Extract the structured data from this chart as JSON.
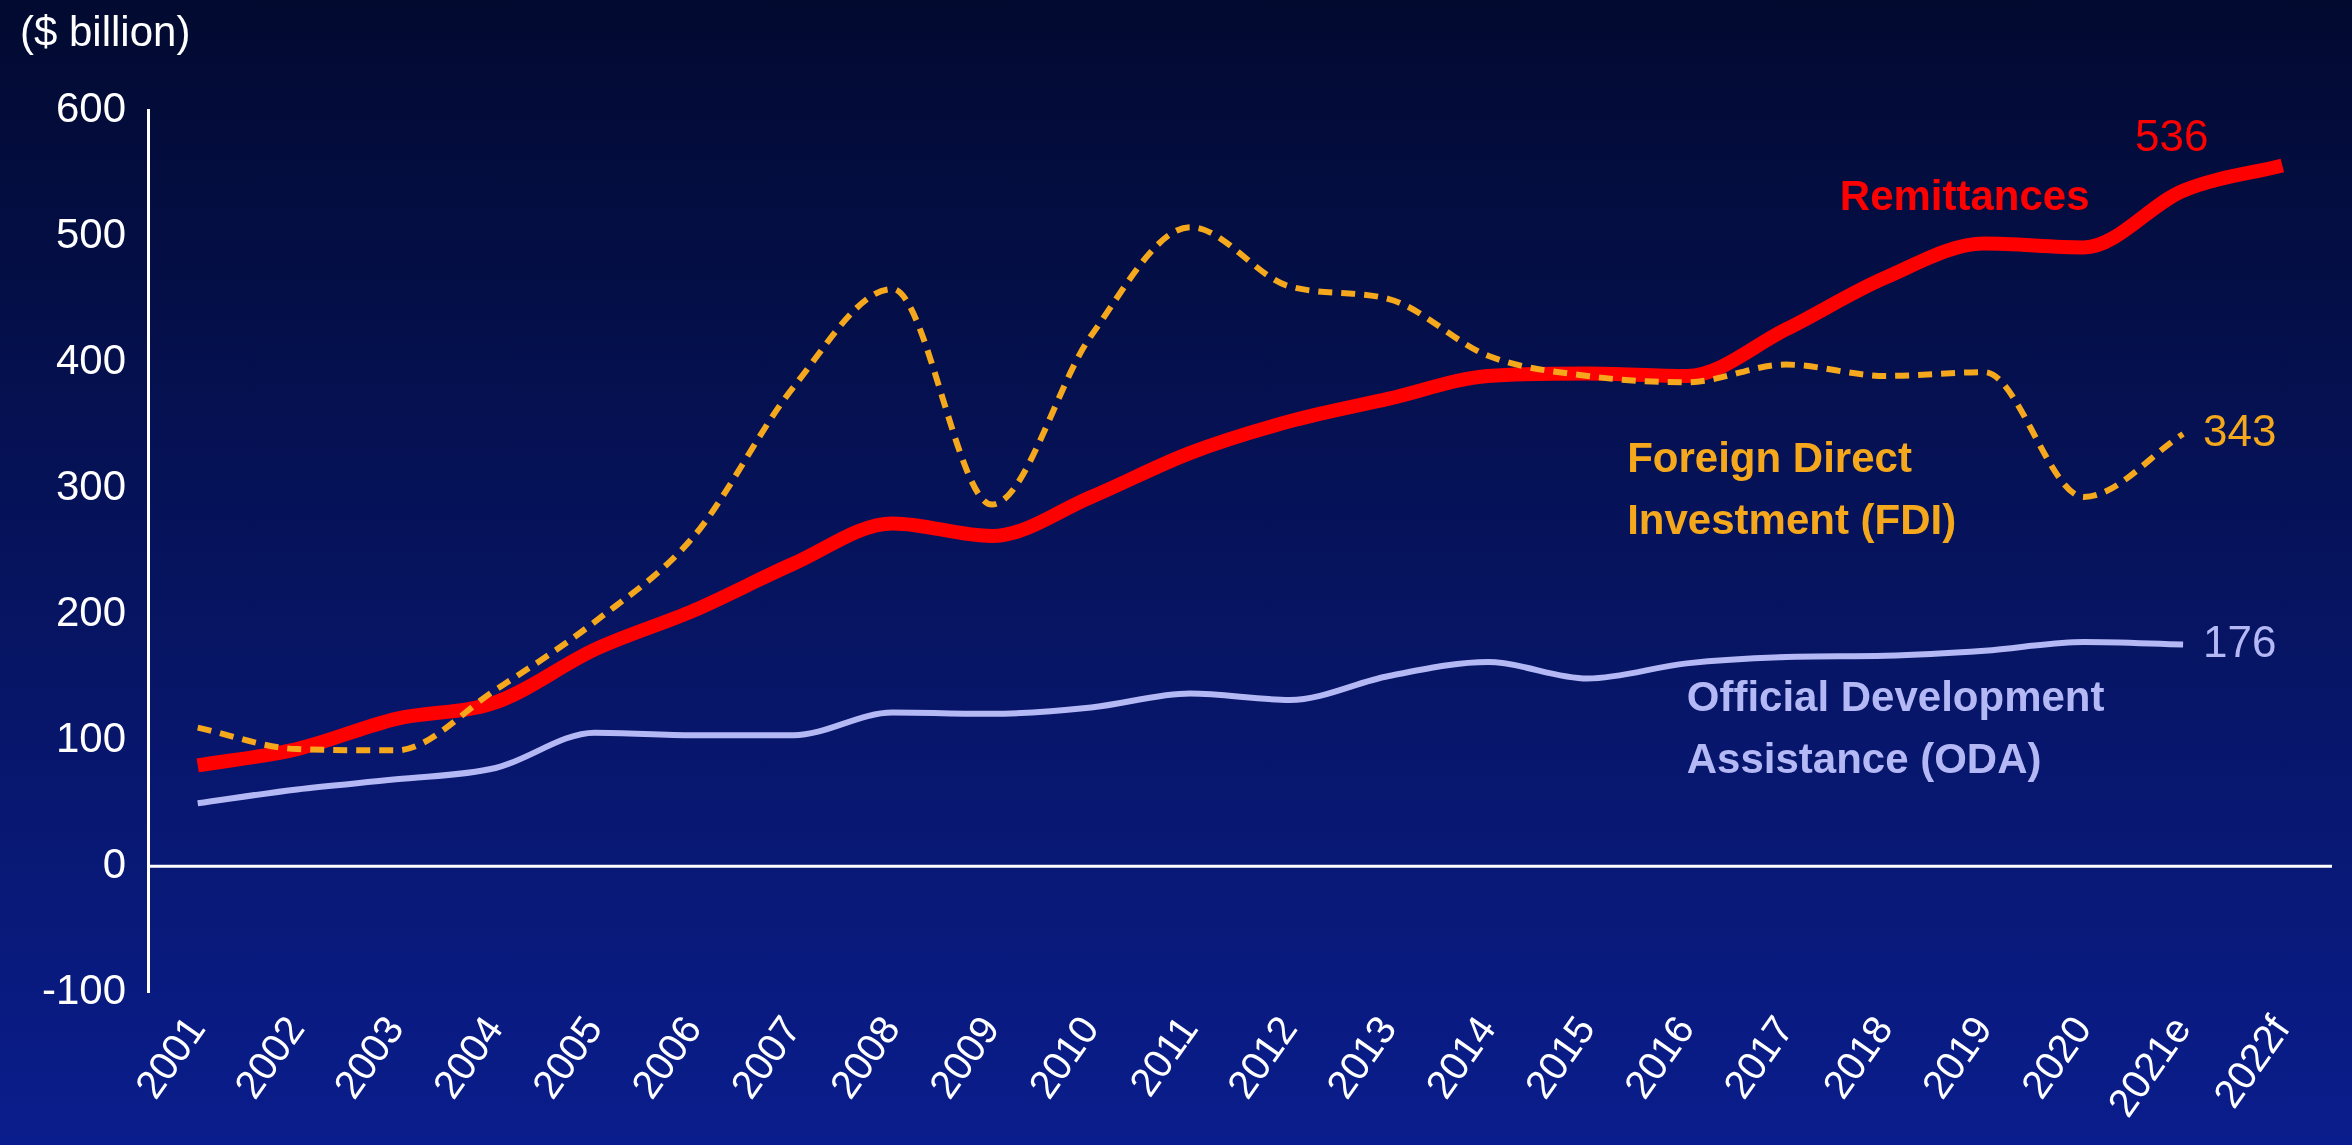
{
  "chart_data": {
    "type": "line",
    "ylabel": "($ billion)",
    "categories": [
      "2001",
      "2002",
      "2003",
      "2004",
      "2005",
      "2006",
      "2007",
      "2008",
      "2009",
      "2010",
      "2011",
      "2012",
      "2013",
      "2014",
      "2015",
      "2016",
      "2017",
      "2018",
      "2019",
      "2020",
      "2021e",
      "2022f"
    ],
    "series": [
      {
        "name": "Remittances",
        "color": "#ff0000",
        "line_style": "solid",
        "values": [
          80,
          93,
          117,
          130,
          172,
          203,
          240,
          272,
          262,
          293,
          328,
          353,
          371,
          389,
          391,
          389,
          426,
          467,
          494,
          491,
          536,
          556
        ],
        "value_labels": [
          null,
          null,
          null,
          null,
          null,
          null,
          null,
          null,
          null,
          null,
          null,
          null,
          null,
          null,
          null,
          null,
          null,
          null,
          null,
          null,
          "536",
          null
        ]
      },
      {
        "name": "Foreign Direct Investment (FDI)",
        "color": "#f5a81c",
        "line_style": "dashed",
        "values": [
          110,
          93,
          92,
          140,
          194,
          262,
          380,
          458,
          287,
          421,
          507,
          460,
          450,
          405,
          389,
          384,
          398,
          389,
          392,
          293,
          343,
          null
        ],
        "value_labels": [
          null,
          null,
          null,
          null,
          null,
          null,
          null,
          null,
          null,
          null,
          null,
          null,
          null,
          null,
          null,
          null,
          null,
          null,
          null,
          null,
          "343",
          null
        ]
      },
      {
        "name": "Official Development Assistance (ODA)",
        "color": "#b4b8f5",
        "line_style": "solid",
        "values": [
          50,
          61,
          69,
          78,
          106,
          104,
          104,
          122,
          121,
          126,
          137,
          132,
          151,
          162,
          149,
          161,
          166,
          167,
          171,
          178,
          176,
          null
        ],
        "value_labels": [
          null,
          null,
          null,
          null,
          null,
          null,
          null,
          null,
          null,
          null,
          null,
          null,
          null,
          null,
          null,
          null,
          null,
          null,
          null,
          null,
          "176",
          null
        ]
      }
    ],
    "ylim": [
      -100,
      600
    ],
    "yticks": [
      -100,
      0,
      100,
      200,
      300,
      400,
      500,
      600
    ],
    "ref_lines": [
      {
        "axis": "y",
        "value": 0,
        "color": "#ffffff"
      }
    ],
    "grid": false,
    "legend": false,
    "marker": "none"
  }
}
